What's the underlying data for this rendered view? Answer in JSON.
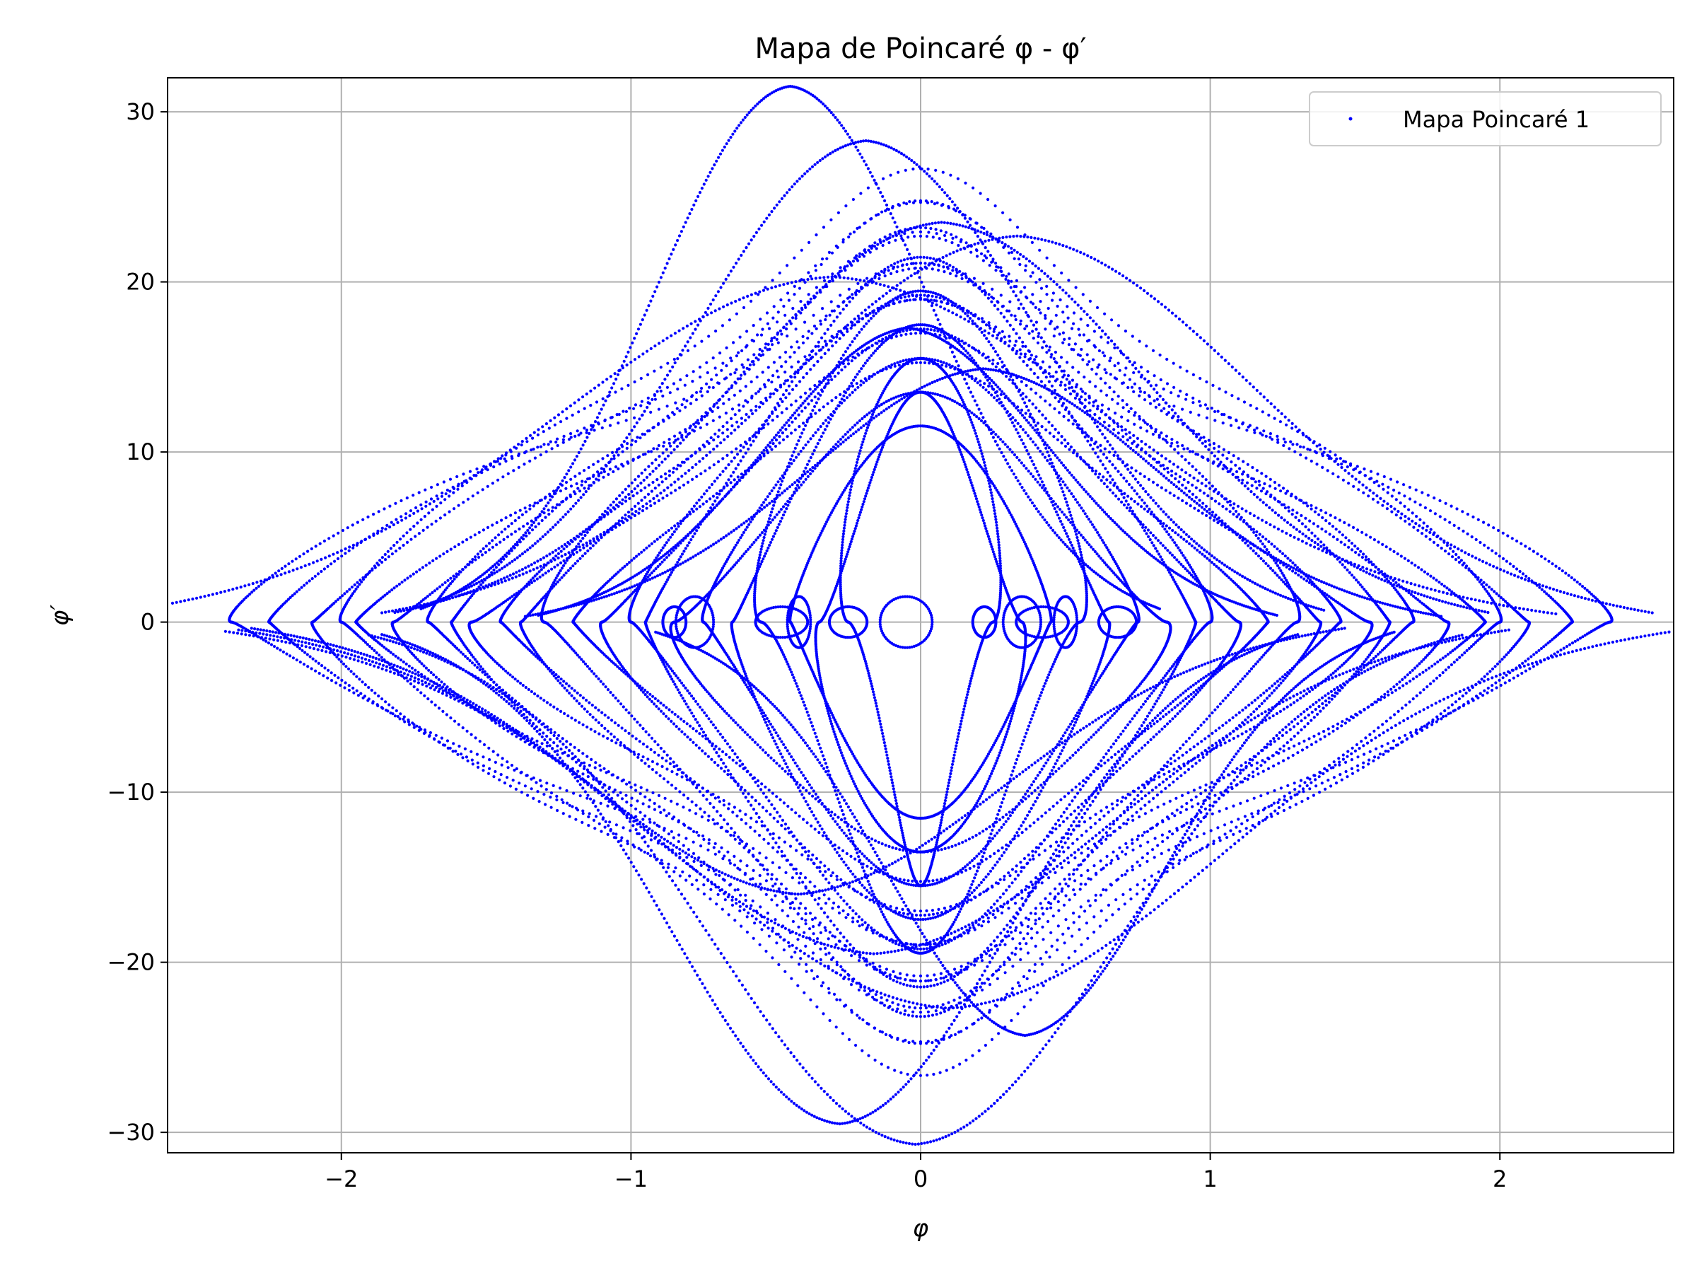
{
  "chart_data": {
    "type": "scatter",
    "title": "Mapa de Poincaré φ - φ′",
    "xlabel": "φ",
    "ylabel": "φ′",
    "xlim": [
      -2.6,
      2.6
    ],
    "ylim": [
      -31.2,
      32
    ],
    "x_ticks": [
      -2,
      -1,
      0,
      1,
      2
    ],
    "x_tick_labels": [
      "−2",
      "−1",
      "0",
      "1",
      "2"
    ],
    "y_ticks": [
      30,
      20,
      10,
      0,
      -10,
      -20,
      -30
    ],
    "y_tick_labels": [
      "30",
      "20",
      "10",
      "0",
      "−10",
      "−20",
      "−30"
    ],
    "grid": true,
    "legend_position": "top-right",
    "marker": "dot",
    "series": [
      {
        "name": "Mapa Poincaré 1",
        "color": "#0000ff",
        "x_range": [
          -2.38,
          2.3
        ],
        "y_range": [
          -28.2,
          29.0
        ],
        "loop_amplitudes_phi": [
          2.38,
          2.25,
          2.1,
          2.0,
          1.95,
          1.82,
          1.7,
          1.62,
          1.55,
          1.45,
          1.38,
          1.3,
          1.2,
          1.1,
          1.0,
          0.95,
          0.85,
          0.75,
          0.65,
          0.55,
          0.45,
          0.35,
          0.25
        ],
        "velocity_peaks_at_phi_zero": [
          29.0,
          25.8,
          21.0,
          20.2,
          17.8,
          14.8,
          12.4,
          -13.5,
          -17.0,
          -20.2,
          -21.8,
          -27.0,
          -28.2
        ],
        "small_loop_centers_phi": [
          -0.85,
          -0.78,
          -0.48,
          -0.42,
          -0.25,
          -0.05,
          0.22,
          0.35,
          0.42,
          0.5,
          0.68
        ]
      }
    ]
  }
}
